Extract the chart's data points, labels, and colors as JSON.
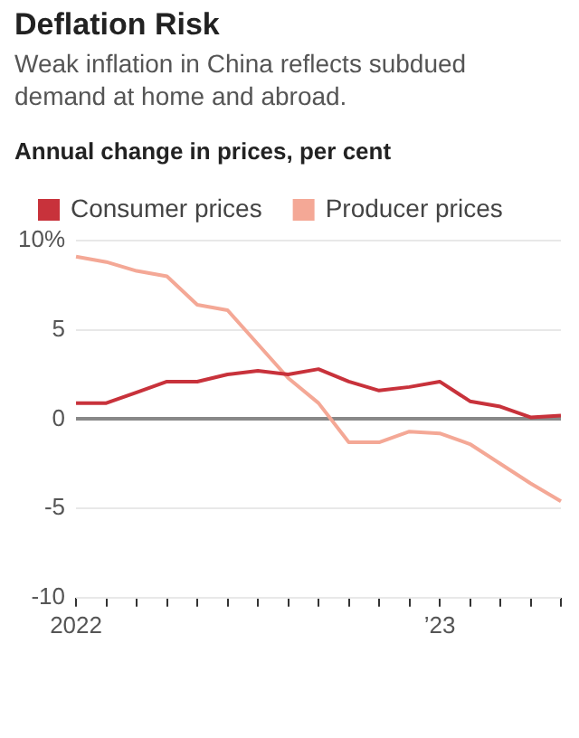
{
  "chart_data": {
    "type": "line",
    "title": "Deflation Risk",
    "subtitle": "Weak inflation in China reflects subdued demand at home and abroad.",
    "ylabel": "Annual change in prices, per cent",
    "categories": [
      "2022",
      null,
      null,
      null,
      null,
      null,
      null,
      null,
      null,
      null,
      null,
      null,
      "’23",
      null,
      null,
      null,
      null
    ],
    "series": [
      {
        "name": "Consumer prices",
        "color": "#c8323b",
        "values": [
          0.9,
          0.9,
          1.5,
          2.1,
          2.1,
          2.5,
          2.7,
          2.5,
          2.8,
          2.1,
          1.6,
          1.8,
          2.1,
          1.0,
          0.7,
          0.1,
          0.2
        ]
      },
      {
        "name": "Producer prices",
        "color": "#f4a896",
        "values": [
          9.1,
          8.8,
          8.3,
          8.0,
          6.4,
          6.1,
          4.2,
          2.3,
          0.9,
          -1.3,
          -1.3,
          -0.7,
          -0.8,
          -1.4,
          -2.5,
          -3.6,
          -4.6
        ]
      }
    ],
    "ylim": [
      -10,
      10
    ],
    "yticks": [
      {
        "value": 10,
        "label": "10%"
      },
      5,
      0,
      -5,
      -10
    ],
    "grid": "y",
    "legend": "top left",
    "marker": "none",
    "line_style": "solid"
  }
}
